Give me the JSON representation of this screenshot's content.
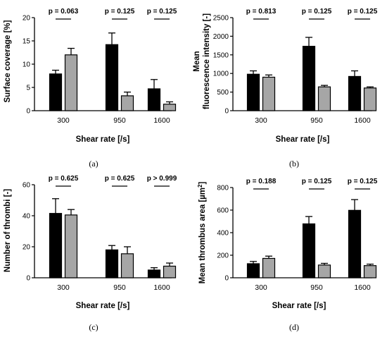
{
  "chart_data": [
    {
      "type": "bar",
      "caption": "(a)",
      "ylabel": "Surface coverage [%]",
      "xlabel": "Shear rate [/s]",
      "categories": [
        "300",
        "950",
        "1600"
      ],
      "ylim": [
        0,
        20
      ],
      "yticks": [
        "0",
        "5",
        "10",
        "15",
        "20"
      ],
      "series_colors": [
        "#000000",
        "#a6a6a6"
      ],
      "series": [
        {
          "values": [
            7.9,
            14.2,
            4.7
          ],
          "errors": [
            0.8,
            2.5,
            2.0
          ]
        },
        {
          "values": [
            12.0,
            3.2,
            1.4
          ],
          "errors": [
            1.4,
            0.8,
            0.5
          ]
        }
      ],
      "pvalues": [
        "p = 0.063",
        "p = 0.125",
        "p = 0.125"
      ]
    },
    {
      "type": "bar",
      "caption": "(b)",
      "ylabel": "Mean fluorescence intensity [-]",
      "ylabel_lines": [
        "Mean",
        "fluorescence intensity [-]"
      ],
      "xlabel": "Shear rate [/s]",
      "categories": [
        "300",
        "950",
        "1600"
      ],
      "ylim": [
        0,
        2500
      ],
      "yticks": [
        "0",
        "500",
        "1000",
        "1500",
        "2000",
        "2500"
      ],
      "series_colors": [
        "#000000",
        "#a6a6a6"
      ],
      "series": [
        {
          "values": [
            980,
            1730,
            920
          ],
          "errors": [
            90,
            240,
            150
          ]
        },
        {
          "values": [
            900,
            640,
            610
          ],
          "errors": [
            60,
            40,
            30
          ]
        }
      ],
      "pvalues": [
        "p = 0.813",
        "p = 0.125",
        "p = 0.125"
      ]
    },
    {
      "type": "bar",
      "caption": "(c)",
      "ylabel": "Number of thrombi [-]",
      "xlabel": "Shear rate [/s]",
      "categories": [
        "300",
        "950",
        "1600"
      ],
      "ylim": [
        0,
        60
      ],
      "yticks": [
        "0",
        "20",
        "40",
        "60"
      ],
      "series_colors": [
        "#000000",
        "#a6a6a6"
      ],
      "series": [
        {
          "values": [
            41.5,
            18,
            5
          ],
          "errors": [
            9.5,
            2.8,
            1.5
          ]
        },
        {
          "values": [
            40.5,
            15.5,
            7.5
          ],
          "errors": [
            3.5,
            4.5,
            2.0
          ]
        }
      ],
      "pvalues": [
        "p = 0.625",
        "p = 0.625",
        "p > 0.999"
      ]
    },
    {
      "type": "bar",
      "caption": "(d)",
      "ylabel": "Mean thrombus area [µm²]",
      "ylabel_parts": [
        "Mean thrombus area [",
        "µm",
        "2",
        "]"
      ],
      "xlabel": "Shear rate [/s]",
      "categories": [
        "300",
        "950",
        "1600"
      ],
      "ylim": [
        0,
        800
      ],
      "yticks": [
        "0",
        "200",
        "400",
        "600",
        "800"
      ],
      "series_colors": [
        "#000000",
        "#a6a6a6"
      ],
      "series": [
        {
          "values": [
            125,
            478,
            598
          ],
          "errors": [
            20,
            65,
            95
          ]
        },
        {
          "values": [
            172,
            113,
            108
          ],
          "errors": [
            20,
            15,
            13
          ]
        }
      ],
      "pvalues": [
        "p = 0.188",
        "p = 0.125",
        "p = 0.125"
      ]
    }
  ]
}
